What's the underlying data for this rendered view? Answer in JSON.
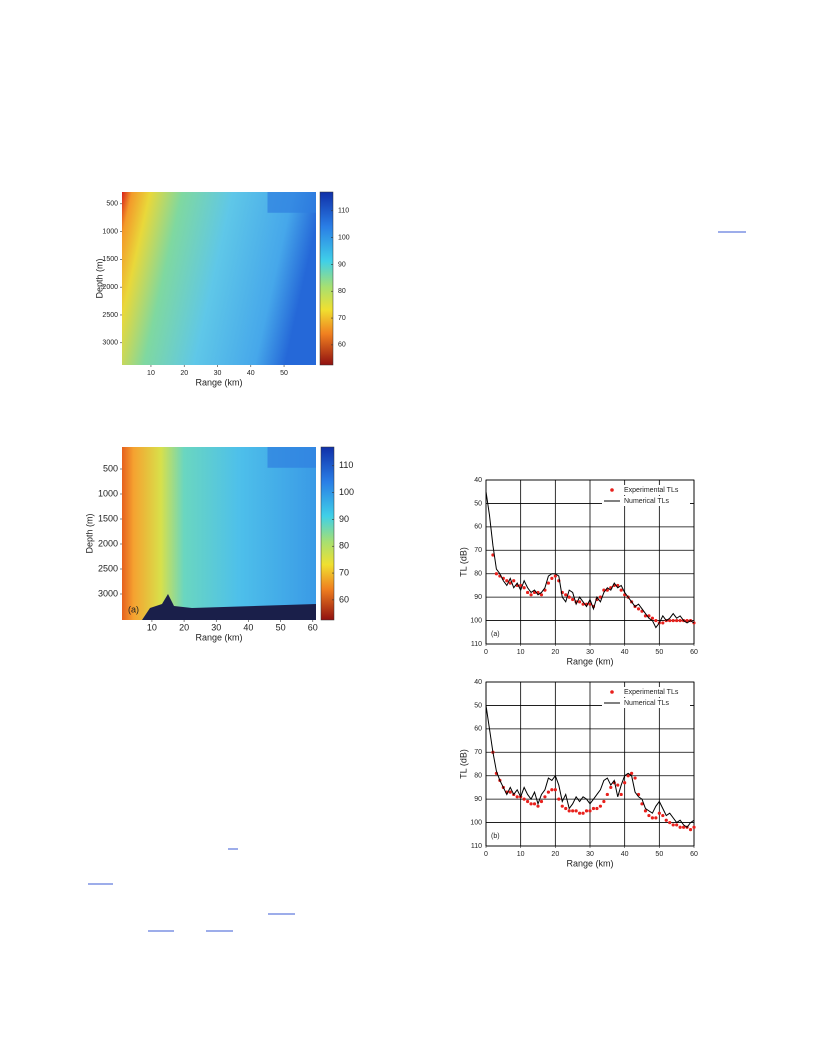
{
  "chart_data": [
    {
      "type": "image",
      "xlabel": "Range (km)",
      "ylabel": "Depth (m)",
      "xlim": [
        1.3,
        59.6
      ],
      "xticks": [
        10,
        20,
        30,
        40,
        50
      ],
      "ylim": [
        288,
        3400
      ],
      "y_inverted": true,
      "yticks": [
        500,
        1000,
        1500,
        2000,
        2500,
        3000
      ],
      "clim": [
        52.5,
        117
      ],
      "colorbar_ticks": [
        60,
        70,
        80,
        90,
        100,
        110
      ]
    },
    {
      "type": "image",
      "xlabel": "Range (km)",
      "ylabel": "Depth (m)",
      "annotation": "(a)",
      "xlim": [
        0.7,
        61
      ],
      "xticks": [
        10,
        20,
        30,
        40,
        50,
        60
      ],
      "ylim": [
        60,
        3520
      ],
      "y_inverted": true,
      "yticks": [
        500,
        1000,
        1500,
        2000,
        2500,
        3000
      ],
      "clim": [
        52.5,
        117
      ],
      "colorbar_ticks": [
        60,
        70,
        80,
        90,
        100,
        110
      ]
    },
    {
      "type": "line",
      "xlabel": "Range (km)",
      "ylabel": "TL (dB)",
      "annotation": "(a)",
      "grid": true,
      "xlim": [
        0,
        60
      ],
      "xticks": [
        0,
        10,
        20,
        30,
        40,
        50,
        60
      ],
      "ylim": [
        40,
        110
      ],
      "y_inverted": true,
      "yticks": [
        40,
        50,
        60,
        70,
        80,
        90,
        100,
        110
      ],
      "series": [
        {
          "name": "Experimental TLs",
          "color": "#e8201c",
          "style": "dots",
          "x": [
            2,
            3,
            4,
            5,
            6,
            7,
            8,
            9,
            10,
            11,
            12,
            13,
            14,
            15,
            16,
            17,
            18,
            19,
            20,
            21,
            22,
            23,
            24,
            25,
            26,
            27,
            28,
            29,
            30,
            31,
            32,
            33,
            34,
            35,
            36,
            37,
            38,
            39,
            40,
            41,
            42,
            43,
            44,
            45,
            46,
            47,
            48,
            49,
            50,
            51,
            52,
            53,
            54,
            55,
            56,
            57,
            58,
            59,
            60
          ],
          "values": [
            72,
            80,
            81,
            82,
            83,
            84,
            83,
            85,
            85,
            86,
            88,
            89,
            88,
            88,
            89,
            87,
            84,
            82,
            81,
            83,
            88,
            89,
            90,
            91,
            92,
            92,
            93,
            93,
            93,
            94,
            91,
            90,
            87,
            87,
            86,
            85,
            85,
            87,
            89,
            90,
            92,
            94,
            95,
            96,
            98,
            98,
            99,
            100,
            101,
            101,
            100,
            100,
            100,
            100,
            100,
            100,
            100,
            100,
            101
          ]
        },
        {
          "name": "Numerical TLs",
          "color": "#000000",
          "style": "line",
          "x": [
            0,
            1,
            2,
            3,
            4,
            5,
            6,
            7,
            8,
            9,
            10,
            11,
            12,
            13,
            14,
            15,
            16,
            17,
            18,
            19,
            20,
            21,
            22,
            23,
            24,
            25,
            26,
            27,
            28,
            29,
            30,
            31,
            32,
            33,
            34,
            35,
            36,
            37,
            38,
            39,
            40,
            41,
            42,
            43,
            44,
            45,
            46,
            47,
            48,
            49,
            50,
            51,
            52,
            53,
            54,
            55,
            56,
            57,
            58,
            59,
            60
          ],
          "values": [
            45,
            55,
            68,
            78,
            80,
            83,
            85,
            82,
            86,
            84,
            87,
            83,
            86,
            88,
            87,
            89,
            88,
            86,
            81,
            80,
            80,
            81,
            90,
            92,
            87,
            88,
            93,
            90,
            92,
            94,
            91,
            95,
            90,
            92,
            88,
            86,
            87,
            84,
            86,
            85,
            88,
            90,
            92,
            94,
            93,
            95,
            97,
            99,
            100,
            103,
            101,
            98,
            100,
            99,
            97,
            99,
            98,
            100,
            101,
            100,
            101
          ]
        }
      ]
    },
    {
      "type": "line",
      "xlabel": "Range (km)",
      "ylabel": "TL (dB)",
      "annotation": "(b)",
      "grid": true,
      "xlim": [
        0,
        60
      ],
      "xticks": [
        0,
        10,
        20,
        30,
        40,
        50,
        60
      ],
      "ylim": [
        40,
        110
      ],
      "y_inverted": true,
      "yticks": [
        40,
        50,
        60,
        70,
        80,
        90,
        100,
        110
      ],
      "series": [
        {
          "name": "Experimental TLs",
          "color": "#e8201c",
          "style": "dots",
          "x": [
            2,
            3,
            4,
            5,
            6,
            7,
            8,
            9,
            10,
            11,
            12,
            13,
            14,
            15,
            16,
            17,
            18,
            19,
            20,
            21,
            22,
            23,
            24,
            25,
            26,
            27,
            28,
            29,
            30,
            31,
            32,
            33,
            34,
            35,
            36,
            37,
            38,
            39,
            40,
            41,
            42,
            43,
            44,
            45,
            46,
            47,
            48,
            49,
            50,
            51,
            52,
            53,
            54,
            55,
            56,
            57,
            58,
            59,
            60
          ],
          "values": [
            70,
            79,
            82,
            85,
            87,
            87,
            88,
            89,
            89,
            90,
            91,
            92,
            92,
            93,
            91,
            89,
            87,
            86,
            86,
            90,
            93,
            94,
            95,
            95,
            95,
            96,
            96,
            95,
            95,
            94,
            94,
            93,
            91,
            88,
            85,
            83,
            84,
            88,
            83,
            80,
            79,
            81,
            88,
            92,
            95,
            97,
            98,
            98,
            96,
            97,
            99,
            100,
            101,
            101,
            102,
            102,
            102,
            103,
            102
          ]
        },
        {
          "name": "Numerical TLs",
          "color": "#000000",
          "style": "line",
          "x": [
            0,
            1,
            2,
            3,
            4,
            5,
            6,
            7,
            8,
            9,
            10,
            11,
            12,
            13,
            14,
            15,
            16,
            17,
            18,
            19,
            20,
            21,
            22,
            23,
            24,
            25,
            26,
            27,
            28,
            29,
            30,
            31,
            32,
            33,
            34,
            35,
            36,
            37,
            38,
            39,
            40,
            41,
            42,
            43,
            44,
            45,
            46,
            47,
            48,
            49,
            50,
            51,
            52,
            53,
            54,
            55,
            56,
            57,
            58,
            59,
            60
          ],
          "values": [
            50,
            60,
            70,
            78,
            82,
            85,
            88,
            85,
            88,
            86,
            89,
            85,
            88,
            90,
            87,
            92,
            88,
            86,
            81,
            82,
            80,
            84,
            91,
            88,
            94,
            92,
            89,
            91,
            89,
            90,
            92,
            90,
            88,
            86,
            82,
            81,
            84,
            82,
            89,
            84,
            80,
            79,
            80,
            87,
            89,
            90,
            94,
            95,
            96,
            93,
            91,
            94,
            97,
            96,
            98,
            100,
            99,
            101,
            102,
            100,
            99
          ]
        }
      ]
    }
  ]
}
